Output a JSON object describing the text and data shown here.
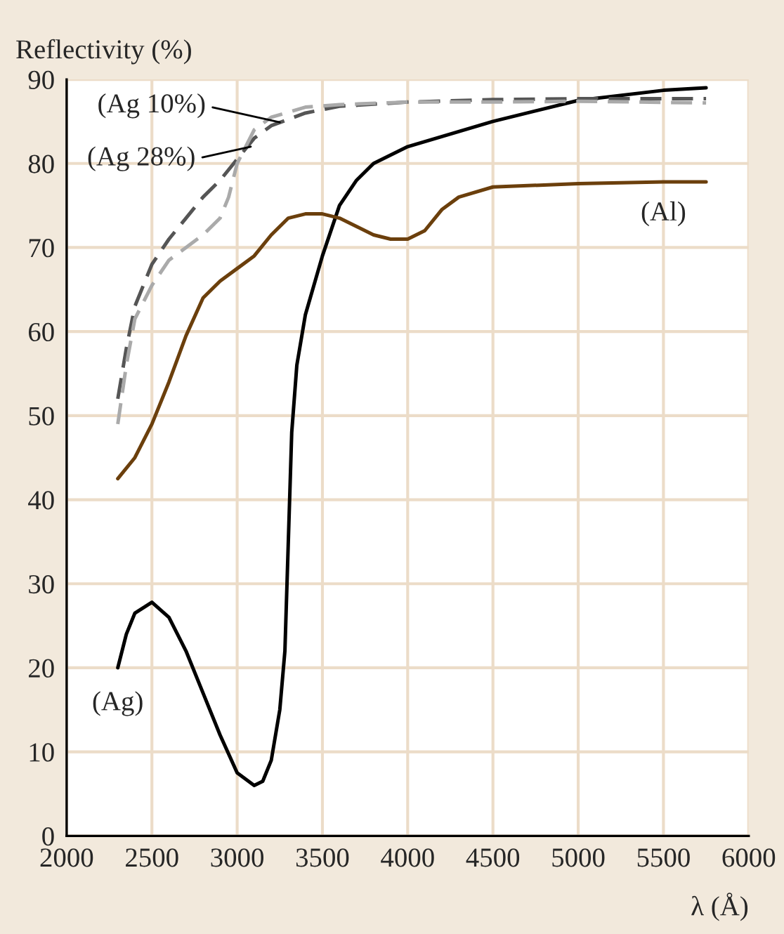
{
  "chart_data": {
    "type": "line",
    "xlabel": "λ (Å)",
    "ylabel": "Reflectivity (%)",
    "xlim": [
      2000,
      6000
    ],
    "ylim": [
      0,
      90
    ],
    "xticks": [
      2000,
      2500,
      3000,
      3500,
      4000,
      4500,
      5000,
      5500,
      6000
    ],
    "yticks": [
      0,
      10,
      20,
      30,
      40,
      50,
      60,
      70,
      80,
      90
    ],
    "grid": true,
    "legend": false,
    "marker": "none",
    "series": [
      {
        "color": "#000000",
        "line_style": "solid",
        "x": [
          2300,
          2350,
          2400,
          2500,
          2600,
          2700,
          2800,
          2900,
          3000,
          3100,
          3150,
          3200,
          3250,
          3280,
          3300,
          3320,
          3350,
          3400,
          3500,
          3600,
          3700,
          3800,
          4000,
          4500,
          5000,
          5500,
          5750
        ],
        "values": [
          20,
          24,
          26.5,
          27.8,
          26,
          22,
          17,
          12,
          7.5,
          6,
          6.5,
          9,
          15,
          22,
          35,
          48,
          56,
          62,
          69,
          75,
          78,
          80,
          82,
          85,
          87.5,
          88.7,
          89
        ]
      },
      {
        "color": "#6b3f0c",
        "line_style": "solid",
        "x": [
          2300,
          2400,
          2500,
          2600,
          2700,
          2800,
          2900,
          3000,
          3100,
          3200,
          3300,
          3400,
          3500,
          3600,
          3700,
          3800,
          3900,
          4000,
          4100,
          4200,
          4300,
          4500,
          5000,
          5500,
          5750
        ],
        "values": [
          42.5,
          45,
          49,
          54,
          59.5,
          64,
          66,
          67.5,
          69,
          71.5,
          73.5,
          74,
          74,
          73.5,
          72.5,
          71.5,
          71,
          71,
          72,
          74.5,
          76,
          77.2,
          77.6,
          77.8,
          77.8
        ]
      },
      {
        "color": "#555555",
        "line_style": "dashed",
        "x": [
          2300,
          2350,
          2400,
          2500,
          2600,
          2700,
          2800,
          2900,
          3000,
          3100,
          3200,
          3400,
          3600,
          4000,
          4500,
          5000,
          5750
        ],
        "values": [
          52,
          58,
          63,
          68,
          71,
          73.5,
          76,
          78,
          80.5,
          83,
          84.5,
          86,
          86.8,
          87.3,
          87.6,
          87.7,
          87.7
        ]
      },
      {
        "color": "#aaaaaa",
        "line_style": "dashed",
        "x": [
          2300,
          2350,
          2400,
          2500,
          2600,
          2700,
          2800,
          2900,
          2950,
          3000,
          3050,
          3100,
          3200,
          3400,
          3600,
          4000,
          4500,
          5000,
          5750
        ],
        "values": [
          49,
          56,
          61.5,
          65.5,
          68.5,
          70,
          71.5,
          73.5,
          76,
          80,
          82,
          84,
          85.5,
          86.7,
          87,
          87.3,
          87.3,
          87.4,
          87.2
        ]
      }
    ],
    "annotations": [
      {
        "text": "(Ag 10%)",
        "x": 3250,
        "y": 84.9
      },
      {
        "text": "(Ag 28%)",
        "x": 3080,
        "y": 82
      },
      {
        "text": "(Ag)",
        "x": 2300,
        "y": 20
      },
      {
        "text": "(Al)",
        "x": 5500,
        "y": 77.8
      }
    ]
  }
}
